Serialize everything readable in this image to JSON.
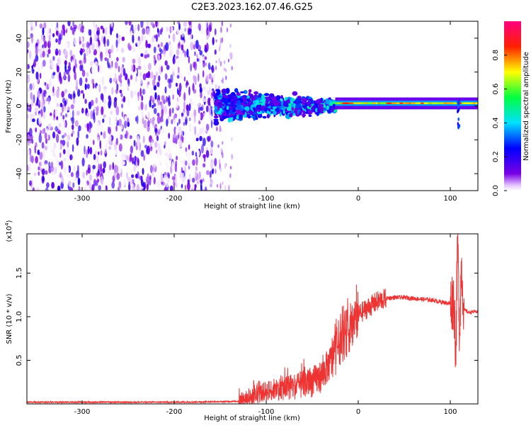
{
  "title": "C2E3.2023.162.07.46.G25",
  "colors": {
    "line": "#ee3333",
    "frame": "#000000"
  },
  "chart_data": [
    {
      "type": "heatmap",
      "title": "C2E3.2023.162.07.46.G25",
      "xlabel": "Height of straight line (km)",
      "ylabel": "Frequency (Hz)",
      "xlim": [
        -360,
        130
      ],
      "ylim": [
        -50,
        50
      ],
      "x_ticks": [
        "-300",
        "-200",
        "-100",
        "0",
        "100"
      ],
      "y_ticks": [
        "-40",
        "-20",
        "0",
        "20",
        "40"
      ],
      "colorbar": {
        "label": "Normalized spectral amplitude",
        "range": [
          0.0,
          1.0
        ],
        "ticks": [
          "0.0",
          "0.2",
          "0.4",
          "0.6",
          "0.8"
        ],
        "colormap": "rainbow (white-violet-blue-cyan-green-yellow-red-magenta)"
      },
      "regions": [
        {
          "x_range": [
            -360,
            -155
          ],
          "freq_range": [
            -50,
            50
          ],
          "pattern": "broadband noise",
          "amplitude": 0.1
        },
        {
          "x_range": [
            -155,
            -110
          ],
          "freq_range": [
            -10,
            12
          ],
          "pattern": "spread signal",
          "amplitude": 0.3
        },
        {
          "x_range": [
            -110,
            -25
          ],
          "freq_range": [
            -15,
            10
          ],
          "pattern": "converging signal",
          "amplitude": 0.35
        },
        {
          "x_range": [
            -25,
            130
          ],
          "freq_range": [
            0,
            3
          ],
          "pattern": "narrow carrier",
          "amplitude": 0.8
        }
      ]
    },
    {
      "type": "line",
      "xlabel": "Height of straight line (km)",
      "ylabel": "SNR (10 * v/v)",
      "y_exponent": "(x10",
      "y_exponent_power": "4",
      "y_exponent_close": ")",
      "xlim": [
        -360,
        130
      ],
      "ylim": [
        0,
        1.95
      ],
      "x_ticks": [
        "-300",
        "-200",
        "-100",
        "0",
        "100"
      ],
      "y_ticks": [
        "0.5",
        "1.0",
        "1.5"
      ],
      "color": "#ee3333",
      "series": [
        {
          "x": [
            -360,
            -300,
            -250,
            -200,
            -150,
            -130,
            -120,
            -110,
            -100,
            -90,
            -80,
            -70,
            -60,
            -50,
            -40,
            -30,
            -25,
            -20,
            -15,
            -10,
            -5,
            0,
            10,
            20,
            30,
            40,
            50,
            60,
            70,
            80,
            90,
            100,
            104,
            106,
            108,
            110,
            112,
            115,
            120,
            130
          ],
          "y": [
            0.02,
            0.02,
            0.02,
            0.02,
            0.025,
            0.03,
            0.06,
            0.1,
            0.15,
            0.17,
            0.18,
            0.2,
            0.22,
            0.25,
            0.32,
            0.48,
            0.6,
            0.72,
            0.78,
            0.85,
            0.95,
            1.02,
            1.1,
            1.17,
            1.21,
            1.22,
            1.22,
            1.21,
            1.2,
            1.19,
            1.17,
            1.15,
            1.2,
            0.6,
            1.9,
            0.8,
            1.6,
            1.08,
            1.05,
            1.06
          ]
        }
      ]
    }
  ]
}
